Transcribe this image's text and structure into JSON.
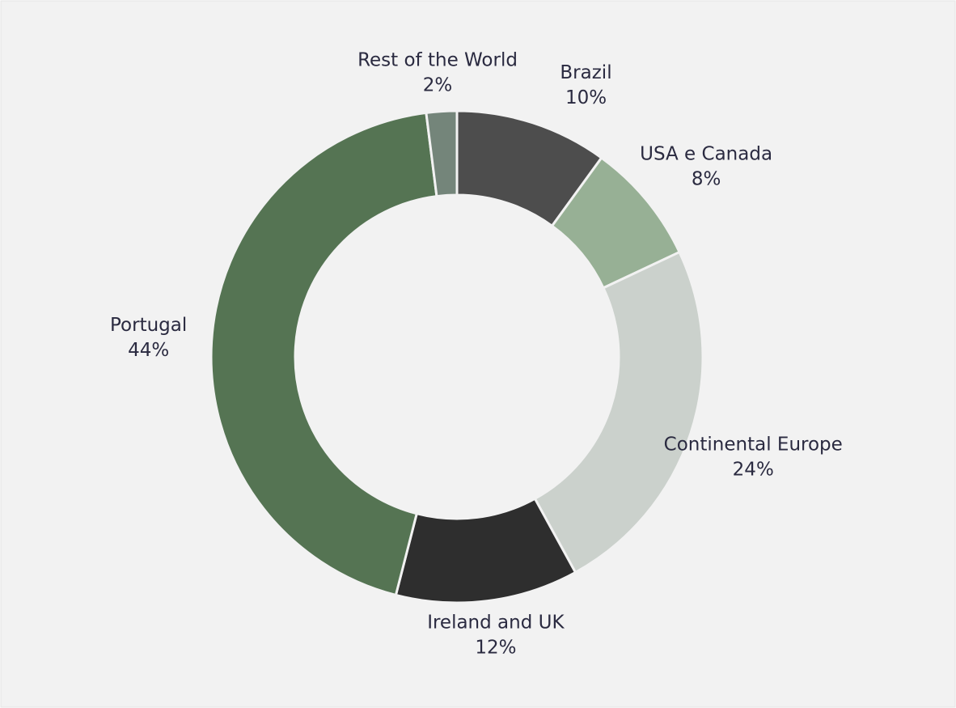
{
  "chart_data": {
    "type": "pie",
    "categories": [
      "Brazil",
      "USA e Canada",
      "Continental Europe",
      "Ireland and UK",
      "Portugal",
      "Rest of the World"
    ],
    "values": [
      10,
      8,
      24,
      12,
      44,
      2
    ],
    "value_labels": [
      "10%",
      "8%",
      "24%",
      "12%",
      "44%",
      "2%"
    ],
    "colors": [
      "#4d4d4d",
      "#97b095",
      "#cbd1cc",
      "#2e2e2e",
      "#557453",
      "#74857a"
    ],
    "hole": true
  }
}
